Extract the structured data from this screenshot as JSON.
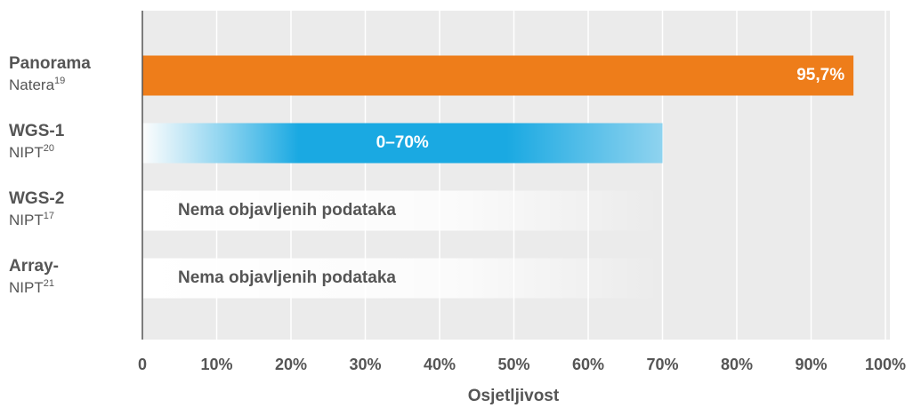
{
  "chart_data": {
    "type": "hbar",
    "categories": [
      {
        "name": "Panorama",
        "sub": "Natera",
        "ref": "19"
      },
      {
        "name": "WGS-1",
        "sub": "NIPT",
        "ref": "20"
      },
      {
        "name": "WGS-2",
        "sub": "NIPT",
        "ref": "17"
      },
      {
        "name": "Array-",
        "sub": "NIPT",
        "ref": "21"
      }
    ],
    "values": [
      95.7,
      70,
      null,
      null
    ],
    "value_labels": [
      "95,7%",
      "0–70%",
      "Nema objavljenih podataka",
      "Nema objavljenih podataka"
    ],
    "colors": [
      "#ee7d1a",
      "#1aa9e2"
    ],
    "xlim": [
      0,
      100
    ],
    "xticks": [
      0,
      {
        "value": 10,
        "label": "10%"
      },
      {
        "value": 20,
        "label": "20%"
      },
      {
        "value": 30,
        "label": "30%"
      },
      {
        "value": 40,
        "label": "40%"
      },
      {
        "value": 50,
        "label": "50%"
      },
      {
        "value": 60,
        "label": "60%"
      },
      {
        "value": 70,
        "label": "70%"
      },
      {
        "value": 80,
        "label": "80%"
      },
      {
        "value": 90,
        "label": "90%"
      },
      {
        "value": 100,
        "label": "100%"
      }
    ],
    "xlabel": "Osjetljivost",
    "grid": true
  }
}
